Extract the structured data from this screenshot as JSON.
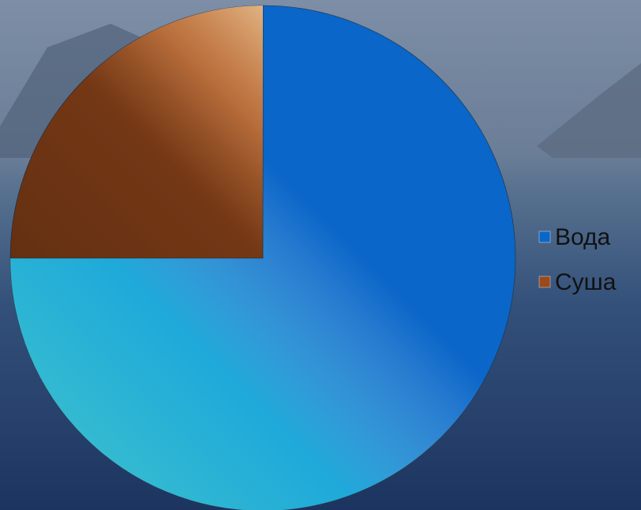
{
  "chart_data": {
    "type": "pie",
    "categories": [
      "Вода",
      "Суша"
    ],
    "values": [
      75,
      25
    ],
    "colors": [
      "#0a66c8",
      "#9a4a1c"
    ]
  }
}
